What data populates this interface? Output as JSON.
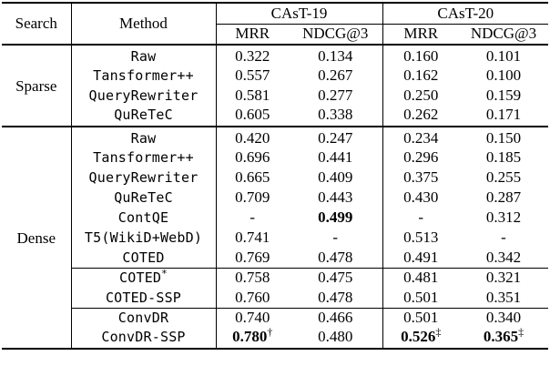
{
  "colors": {
    "text": "#000000",
    "background": "#ffffff",
    "rule": "#000000"
  },
  "table": {
    "header": {
      "search": "Search",
      "method": "Method",
      "groups": [
        {
          "label": "CAsT-19",
          "metrics": [
            "MRR",
            "NDCG@3"
          ]
        },
        {
          "label": "CAsT-20",
          "metrics": [
            "MRR",
            "NDCG@3"
          ]
        }
      ]
    },
    "sections": [
      {
        "label": "Sparse",
        "row_groups": [
          [
            {
              "method": "Raw",
              "cells": [
                {
                  "t": "0.322"
                },
                {
                  "t": "0.134"
                },
                {
                  "t": "0.160"
                },
                {
                  "t": "0.101"
                }
              ]
            },
            {
              "method": "Tansformer++",
              "cells": [
                {
                  "t": "0.557"
                },
                {
                  "t": "0.267"
                },
                {
                  "t": "0.162"
                },
                {
                  "t": "0.100"
                }
              ]
            },
            {
              "method": "QueryRewriter",
              "cells": [
                {
                  "t": "0.581"
                },
                {
                  "t": "0.277"
                },
                {
                  "t": "0.250"
                },
                {
                  "t": "0.159"
                }
              ]
            },
            {
              "method": "QuReTeC",
              "cells": [
                {
                  "t": "0.605"
                },
                {
                  "t": "0.338"
                },
                {
                  "t": "0.262"
                },
                {
                  "t": "0.171"
                }
              ]
            }
          ]
        ]
      },
      {
        "label": "Dense",
        "row_groups": [
          [
            {
              "method": "Raw",
              "cells": [
                {
                  "t": "0.420"
                },
                {
                  "t": "0.247"
                },
                {
                  "t": "0.234"
                },
                {
                  "t": "0.150"
                }
              ]
            },
            {
              "method": "Tansformer++",
              "cells": [
                {
                  "t": "0.696"
                },
                {
                  "t": "0.441"
                },
                {
                  "t": "0.296"
                },
                {
                  "t": "0.185"
                }
              ]
            },
            {
              "method": "QueryRewriter",
              "cells": [
                {
                  "t": "0.665"
                },
                {
                  "t": "0.409"
                },
                {
                  "t": "0.375"
                },
                {
                  "t": "0.255"
                }
              ]
            },
            {
              "method": "QuReTeC",
              "cells": [
                {
                  "t": "0.709"
                },
                {
                  "t": "0.443"
                },
                {
                  "t": "0.430"
                },
                {
                  "t": "0.287"
                }
              ]
            },
            {
              "method": "ContQE",
              "cells": [
                {
                  "t": "-"
                },
                {
                  "t": "0.499",
                  "b": true
                },
                {
                  "t": "-"
                },
                {
                  "t": "0.312"
                }
              ]
            },
            {
              "method": "T5(WikiD+WebD)",
              "cells": [
                {
                  "t": "0.741"
                },
                {
                  "t": "-"
                },
                {
                  "t": "0.513"
                },
                {
                  "t": "-"
                }
              ]
            },
            {
              "method": "COTED",
              "cells": [
                {
                  "t": "0.769"
                },
                {
                  "t": "0.478"
                },
                {
                  "t": "0.491"
                },
                {
                  "t": "0.342"
                }
              ]
            }
          ],
          [
            {
              "method": "COTED",
              "method_sup": "*",
              "cells": [
                {
                  "t": "0.758"
                },
                {
                  "t": "0.475"
                },
                {
                  "t": "0.481"
                },
                {
                  "t": "0.321"
                }
              ]
            },
            {
              "method": "COTED-SSP",
              "cells": [
                {
                  "t": "0.760"
                },
                {
                  "t": "0.478"
                },
                {
                  "t": "0.501"
                },
                {
                  "t": "0.351"
                }
              ]
            }
          ],
          [
            {
              "method": "ConvDR",
              "cells": [
                {
                  "t": "0.740"
                },
                {
                  "t": "0.466"
                },
                {
                  "t": "0.501"
                },
                {
                  "t": "0.340"
                }
              ]
            },
            {
              "method": "ConvDR-SSP",
              "cells": [
                {
                  "t": "0.780",
                  "b": true,
                  "s": "†"
                },
                {
                  "t": "0.480"
                },
                {
                  "t": "0.526",
                  "b": true,
                  "s": "‡"
                },
                {
                  "t": "0.365",
                  "b": true,
                  "s": "‡"
                }
              ]
            }
          ]
        ]
      }
    ]
  }
}
